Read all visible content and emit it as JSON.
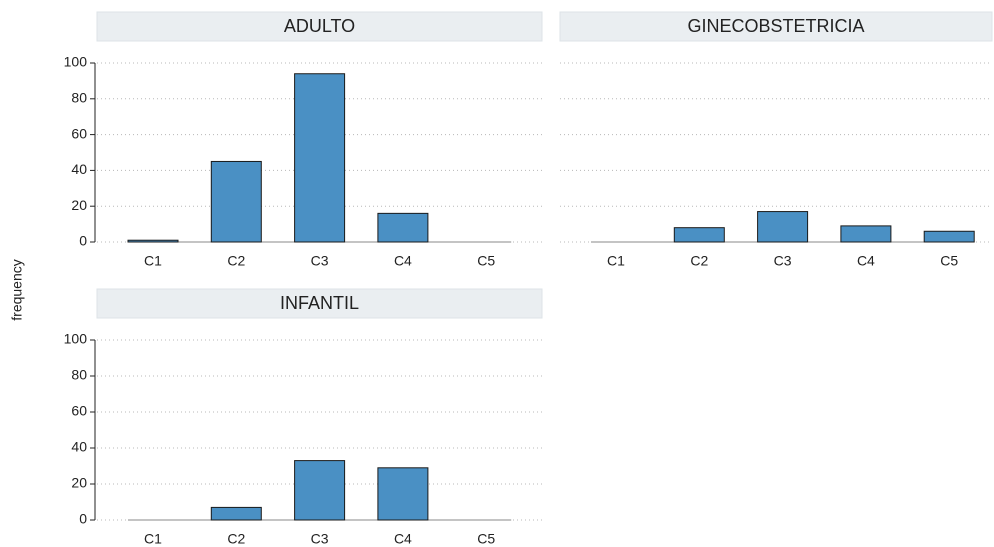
{
  "ylabel": "frequency",
  "chart_data": [
    {
      "type": "bar",
      "title": "ADULTO",
      "categories": [
        "C1",
        "C2",
        "C3",
        "C4",
        "C5"
      ],
      "values": [
        1,
        45,
        94,
        16,
        0
      ],
      "color": "#4a90c4",
      "ylim": [
        0,
        100
      ],
      "yticks": [
        0,
        20,
        40,
        60,
        80,
        100
      ],
      "grid": true
    },
    {
      "type": "bar",
      "title": "GINECOBSTETRICIA",
      "categories": [
        "C1",
        "C2",
        "C3",
        "C4",
        "C5"
      ],
      "values": [
        0,
        8,
        17,
        9,
        6
      ],
      "color": "#4a90c4",
      "ylim": [
        0,
        100
      ],
      "yticks": [
        0,
        20,
        40,
        60,
        80,
        100
      ],
      "grid": true
    },
    {
      "type": "bar",
      "title": "INFANTIL",
      "categories": [
        "C1",
        "C2",
        "C3",
        "C4",
        "C5"
      ],
      "values": [
        0,
        7,
        33,
        29,
        0
      ],
      "color": "#4a90c4",
      "ylim": [
        0,
        100
      ],
      "yticks": [
        0,
        20,
        40,
        60,
        80,
        100
      ],
      "grid": true
    }
  ]
}
